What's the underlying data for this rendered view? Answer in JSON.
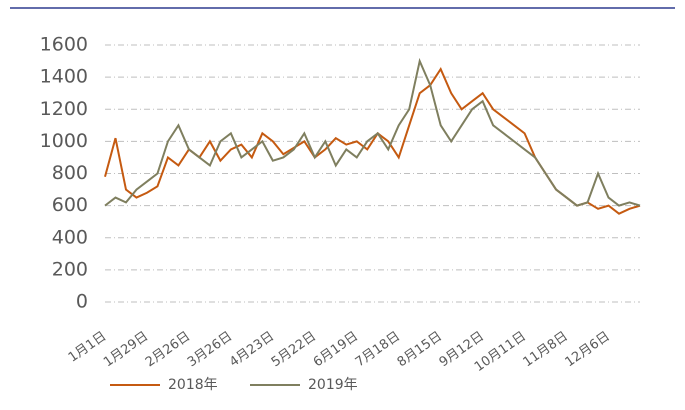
{
  "chart_data": {
    "type": "line",
    "categories": [
      "1月1日",
      null,
      null,
      null,
      "1月29日",
      null,
      null,
      null,
      "2月26日",
      null,
      null,
      null,
      "3月26日",
      null,
      null,
      null,
      "4月23日",
      null,
      null,
      null,
      "5月22日",
      null,
      null,
      null,
      "6月19日",
      null,
      null,
      null,
      "7月18日",
      null,
      null,
      null,
      "8月15日",
      null,
      null,
      null,
      "9月12日",
      null,
      null,
      null,
      "10月11日",
      null,
      null,
      null,
      "11月8日",
      null,
      null,
      null,
      "12月6日",
      null,
      null,
      null
    ],
    "series": [
      {
        "name": "2018年",
        "color": "#c55a11",
        "values": [
          780,
          1020,
          700,
          650,
          680,
          720,
          900,
          850,
          950,
          900,
          1000,
          880,
          950,
          980,
          900,
          1050,
          1000,
          920,
          960,
          1000,
          900,
          950,
          1020,
          980,
          1000,
          950,
          1050,
          1000,
          900,
          1100,
          1300,
          1350,
          1450,
          1300,
          1200,
          1250,
          1300,
          1200,
          1150,
          1100,
          1050,
          900,
          800,
          700,
          650,
          600,
          620,
          580,
          600,
          550,
          580,
          600
        ]
      },
      {
        "name": "2019年",
        "color": "#7f7f5f",
        "values": [
          600,
          650,
          620,
          700,
          750,
          800,
          1000,
          1100,
          950,
          900,
          850,
          1000,
          1050,
          900,
          950,
          1000,
          880,
          900,
          950,
          1050,
          900,
          1000,
          850,
          950,
          900,
          1000,
          1050,
          950,
          1100,
          1200,
          1500,
          1350,
          1100,
          1000,
          1100,
          1200,
          1250,
          1100,
          1050,
          1000,
          950,
          900,
          800,
          700,
          650,
          600,
          620,
          800,
          650,
          600,
          620,
          600
        ]
      }
    ],
    "ylim": [
      0,
      1600
    ],
    "yticks": [
      0,
      200,
      400,
      600,
      800,
      1000,
      1200,
      1400,
      1600
    ],
    "grid": true
  }
}
